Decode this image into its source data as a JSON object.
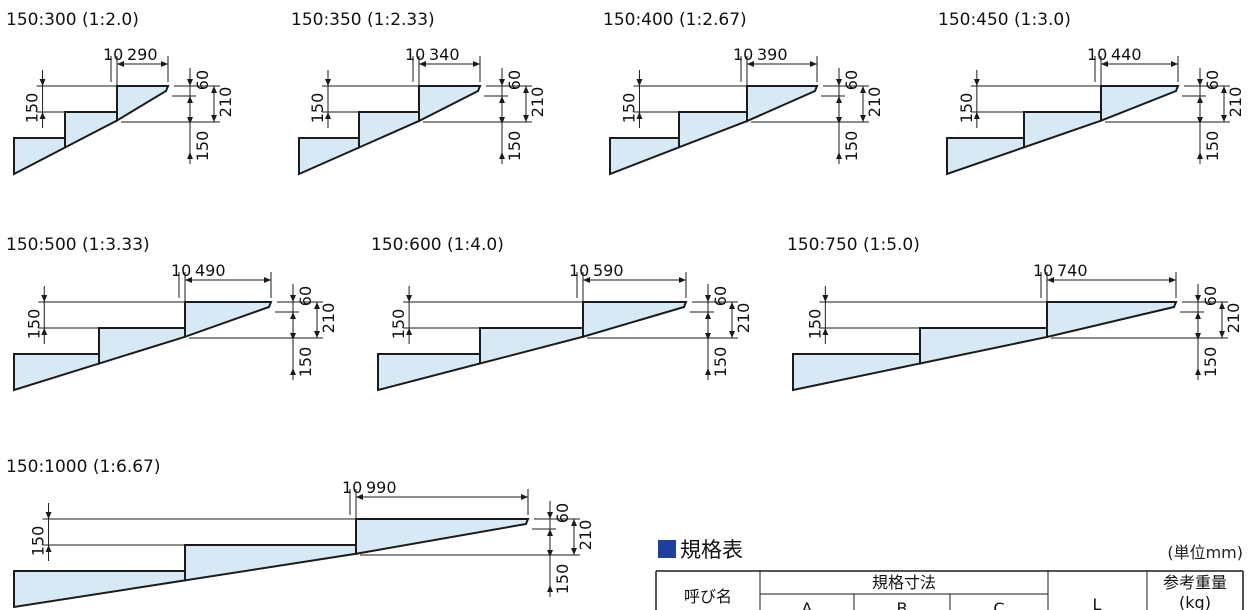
{
  "diagrams": [
    {
      "title": "150:300 (1:2.0)",
      "gap": "10",
      "tread": "290",
      "rise": "150",
      "nose": "60",
      "height": "210",
      "rise2": "150"
    },
    {
      "title": "150:350 (1:2.33)",
      "gap": "10",
      "tread": "340",
      "rise": "150",
      "nose": "60",
      "height": "210",
      "rise2": "150"
    },
    {
      "title": "150:400 (1:2.67)",
      "gap": "10",
      "tread": "390",
      "rise": "150",
      "nose": "60",
      "height": "210",
      "rise2": "150"
    },
    {
      "title": "150:450 (1:3.0)",
      "gap": "10",
      "tread": "440",
      "rise": "150",
      "nose": "60",
      "height": "210",
      "rise2": "150"
    },
    {
      "title": "150:500 (1:3.33)",
      "gap": "10",
      "tread": "490",
      "rise": "150",
      "nose": "60",
      "height": "210",
      "rise2": "150"
    },
    {
      "title": "150:600 (1:4.0)",
      "gap": "10",
      "tread": "590",
      "rise": "150",
      "nose": "60",
      "height": "210",
      "rise2": "150"
    },
    {
      "title": "150:750 (1:5.0)",
      "gap": "10",
      "tread": "740",
      "rise": "150",
      "nose": "60",
      "height": "210",
      "rise2": "150"
    },
    {
      "title": "150:1000 (1:6.67)",
      "gap": "10",
      "tread": "990",
      "rise": "150",
      "nose": "60",
      "height": "210",
      "rise2": "150"
    }
  ],
  "spec_table": {
    "title": "規格表",
    "unit": "(単位mm)",
    "col_name": "呼び名",
    "col_dims": "規格寸法",
    "col_a": "A",
    "col_b": "B",
    "col_c": "C",
    "col_l": "L",
    "col_weight": "参考重量",
    "col_weight_unit": "(kg)"
  },
  "colors": {
    "step_fill": "#d6e9f5",
    "line": "#1b1b1b",
    "accent": "#1f3f9c"
  }
}
